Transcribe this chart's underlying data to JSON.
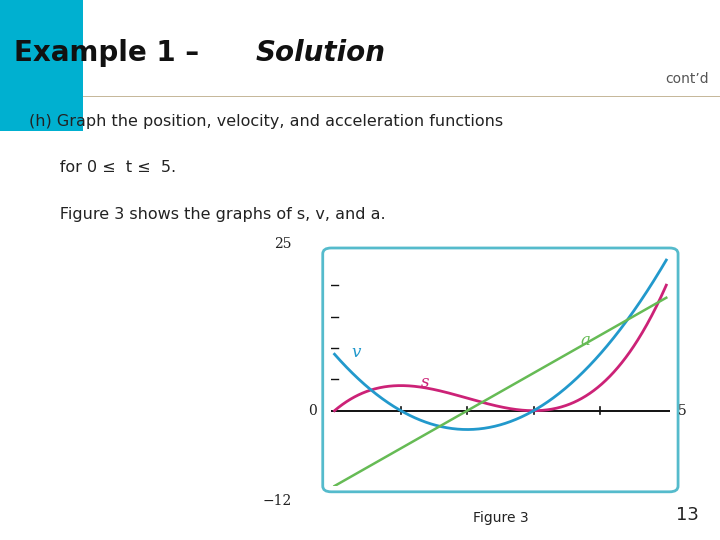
{
  "title_bold": "Example 1 – ",
  "title_italic": "Solution",
  "contd": "cont’d",
  "line1": "(h) Graph the position, velocity, and acceleration functions",
  "line2": "      for 0 ≤  t ≤  5.",
  "line3": "      Figure 3 shows the graphs of s, v, and a.",
  "figure_label": "Figure 3",
  "page_number": "13",
  "t_min": 0,
  "t_max": 5,
  "y_min": -12,
  "y_max": 25,
  "page_bg": "#ffffff",
  "header_bg": "#e8dfc8",
  "cyan_box": "#00b0d0",
  "plot_border_color": "#55bbcc",
  "s_color": "#cc2277",
  "v_color": "#2299cc",
  "a_color": "#66bb55",
  "axis_color": "#111111",
  "text_color": "#222222",
  "title_color": "#111111",
  "contd_color": "#555555"
}
